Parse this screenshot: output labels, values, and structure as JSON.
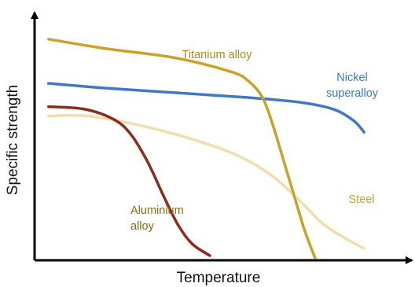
{
  "chart_data": {
    "type": "line",
    "xlabel": "Temperature",
    "ylabel": "Specific strength",
    "xlim": [
      0,
      100
    ],
    "ylim": [
      0,
      100
    ],
    "axis_ticks": false,
    "grid": false,
    "legend": "none (series labeled inline)",
    "series": [
      {
        "name": "Titanium alloy",
        "color": "#c9a227",
        "label_lines": [
          "Titanium alloy"
        ],
        "points": [
          [
            4,
            95
          ],
          [
            20,
            91
          ],
          [
            40,
            87
          ],
          [
            56,
            81
          ],
          [
            61,
            77
          ],
          [
            65,
            70
          ],
          [
            68,
            58
          ],
          [
            71,
            43
          ],
          [
            74,
            28
          ],
          [
            77,
            13
          ],
          [
            80,
            1
          ]
        ]
      },
      {
        "name": "Nickel superalloy",
        "color": "#3f78c4",
        "label_lines": [
          "Nickel",
          "superalloy"
        ],
        "points": [
          [
            4,
            76
          ],
          [
            20,
            74
          ],
          [
            40,
            72
          ],
          [
            60,
            70
          ],
          [
            75,
            68
          ],
          [
            85,
            65
          ],
          [
            91,
            60
          ],
          [
            94,
            55
          ]
        ]
      },
      {
        "name": "Steel",
        "color": "#f2ddab",
        "label_lines": [
          "Steel"
        ],
        "points": [
          [
            4,
            62
          ],
          [
            15,
            62
          ],
          [
            30,
            58
          ],
          [
            45,
            52
          ],
          [
            58,
            45
          ],
          [
            68,
            36
          ],
          [
            76,
            25
          ],
          [
            82,
            16
          ],
          [
            88,
            10
          ],
          [
            94,
            5
          ]
        ]
      },
      {
        "name": "Aluminium alloy",
        "color": "#8b2c1a",
        "label_lines": [
          "Aluminium",
          "alloy"
        ],
        "points": [
          [
            4,
            66
          ],
          [
            14,
            65
          ],
          [
            22,
            61
          ],
          [
            27,
            55
          ],
          [
            32,
            43
          ],
          [
            37,
            27
          ],
          [
            41,
            15
          ],
          [
            45,
            7
          ],
          [
            50,
            2
          ]
        ]
      }
    ]
  }
}
